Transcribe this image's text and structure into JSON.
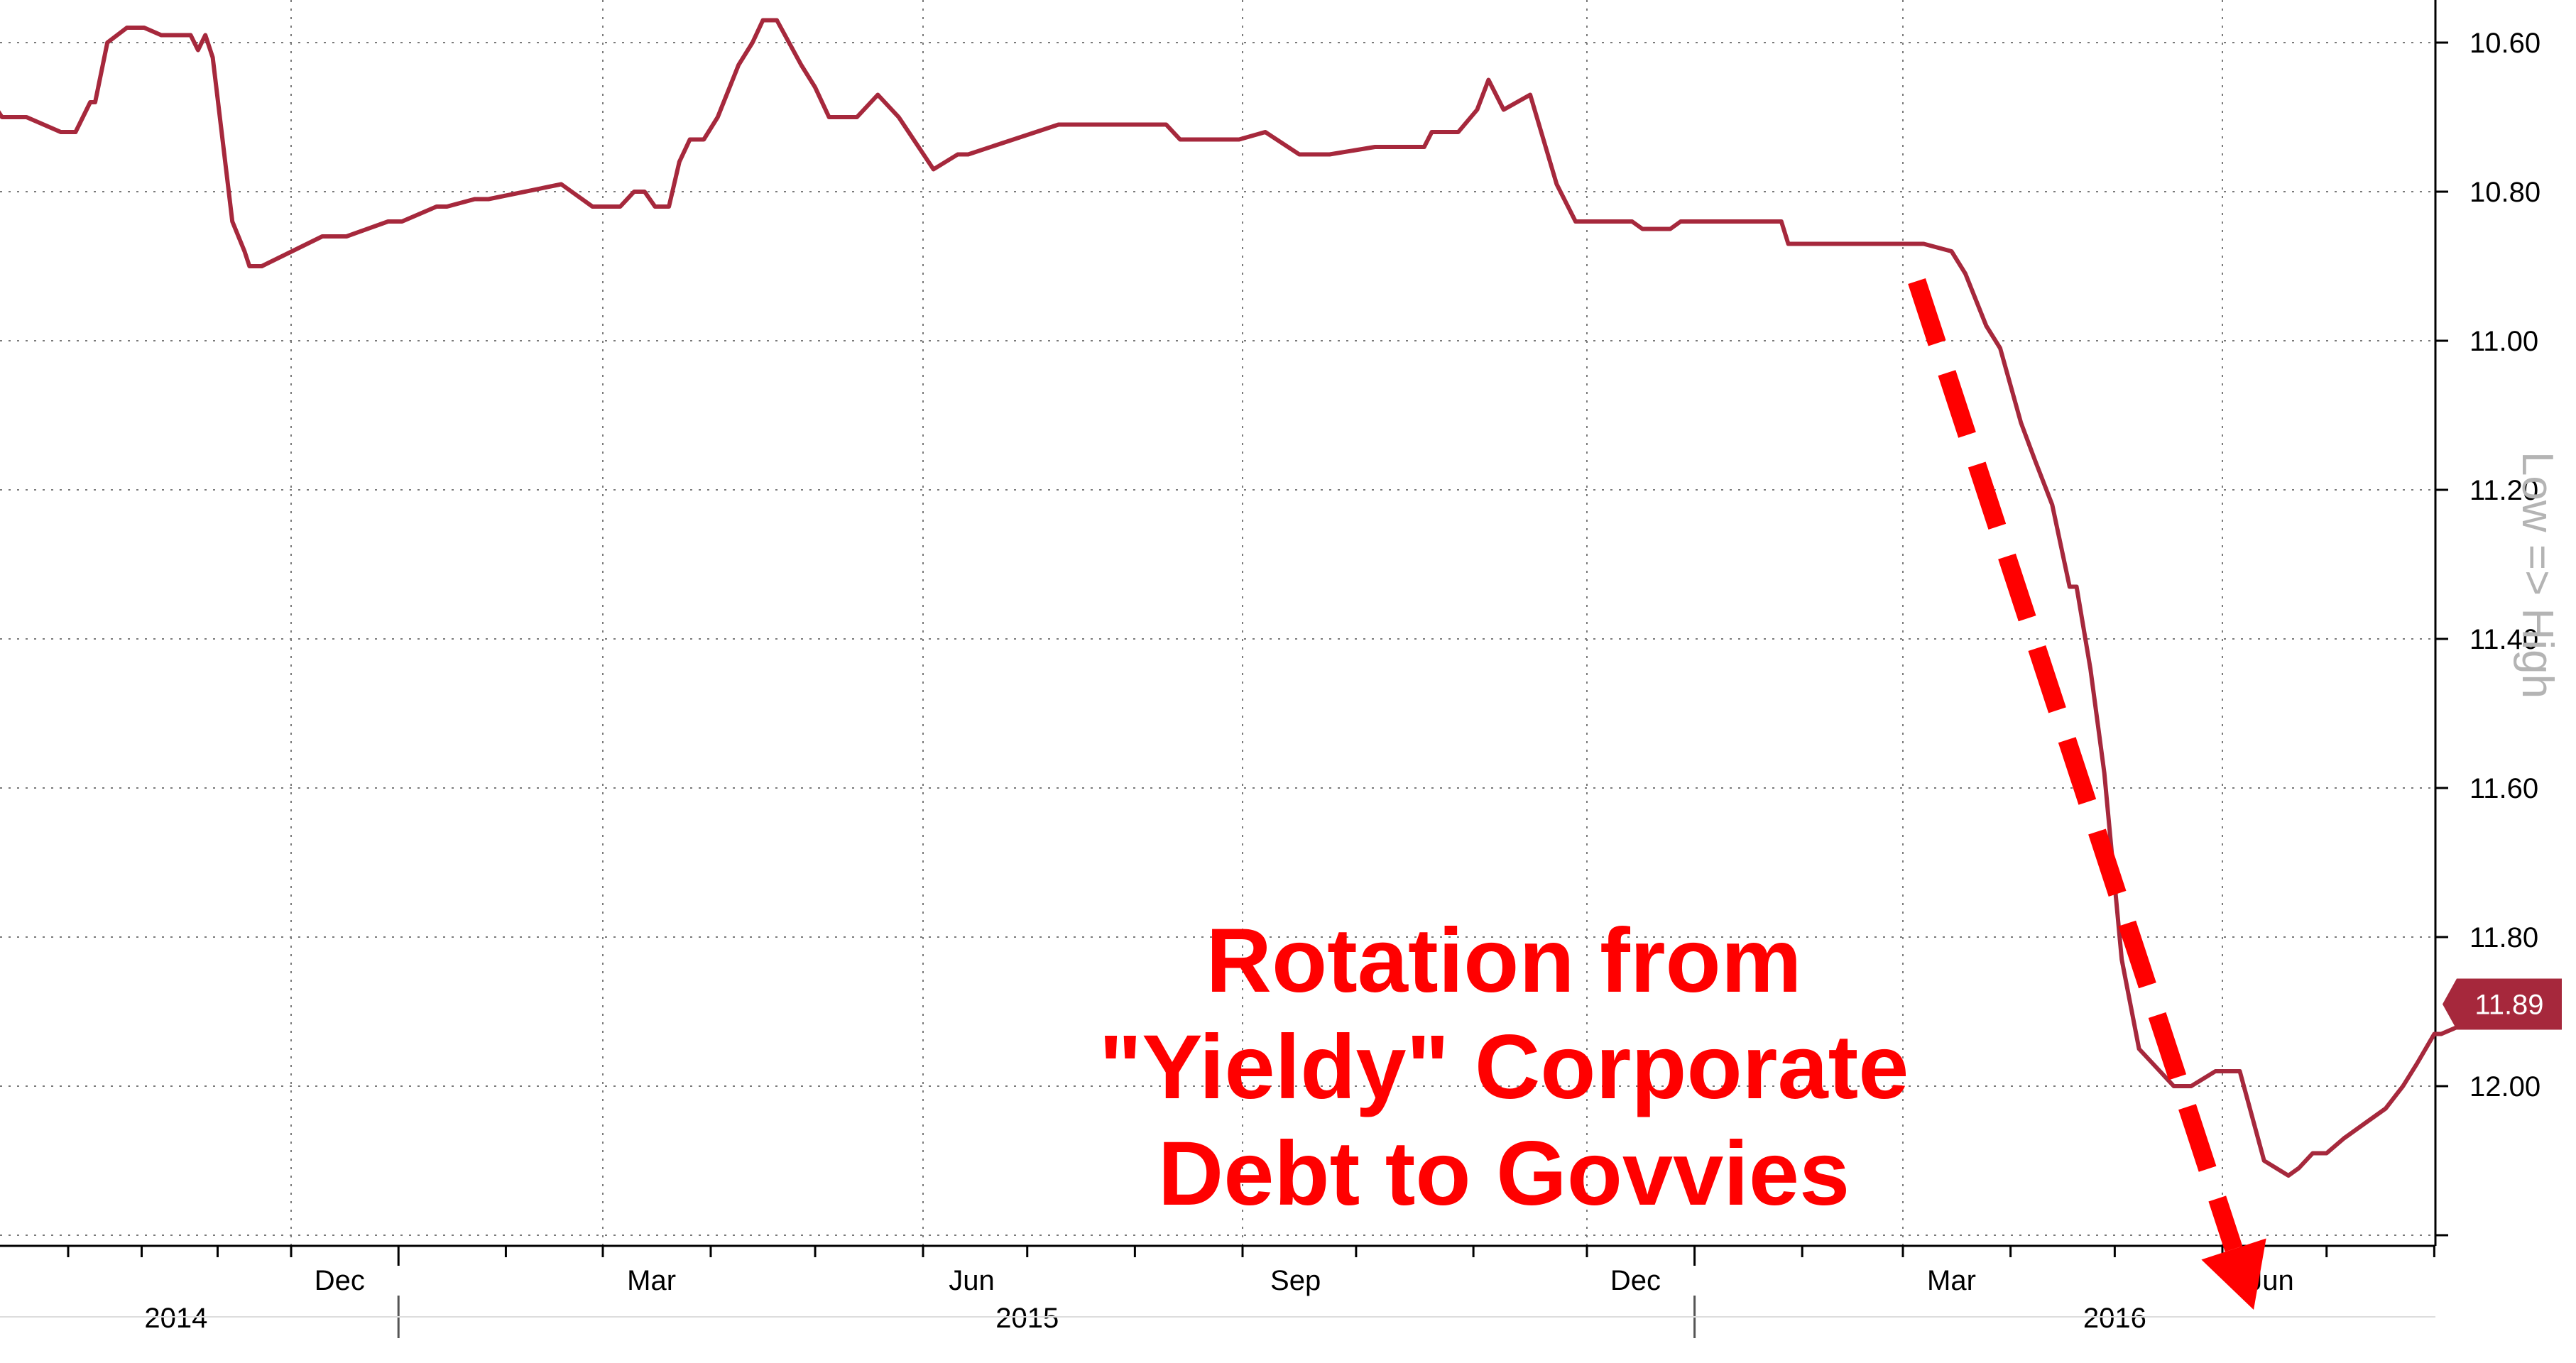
{
  "chart_data": {
    "type": "line",
    "y_inverted": true,
    "ylim": [
      10.55,
      12.27
    ],
    "y_ticks": [
      10.6,
      10.8,
      11.0,
      11.2,
      11.4,
      11.6,
      11.8,
      12.0,
      12.2
    ],
    "y_tick_labels": [
      "10.60",
      "10.80",
      "11.00",
      "11.20",
      "11.40",
      "11.60",
      "11.80",
      "12.00",
      ""
    ],
    "y_axis_note": "Low => High",
    "x_month_labels": [
      "Dec",
      "Mar",
      "Jun",
      "Sep",
      "Dec",
      "Mar",
      "Jun"
    ],
    "x_year_labels": [
      "2014",
      "2015",
      "2016"
    ],
    "last_value_label": "11.89",
    "series": [
      {
        "color": "#a6283c",
        "x": [
          "2014-08-01",
          "2014-08-05",
          "2014-08-15",
          "2014-08-29",
          "2014-09-04",
          "2014-09-10",
          "2014-09-12",
          "2014-09-17",
          "2014-09-25",
          "2014-10-02",
          "2014-10-09",
          "2014-10-21",
          "2014-10-24",
          "2014-10-27",
          "2014-10-30",
          "2014-11-07",
          "2014-11-12",
          "2014-11-14",
          "2014-11-17",
          "2014-11-19",
          "2014-12-10",
          "2014-12-17",
          "2014-12-29",
          "2015-01-02",
          "2015-01-12",
          "2015-01-15",
          "2015-01-23",
          "2015-01-27",
          "2015-02-17",
          "2015-02-20",
          "2015-02-26",
          "2015-03-06",
          "2015-03-10",
          "2015-03-13",
          "2015-03-16",
          "2015-03-20",
          "2015-03-23",
          "2015-03-26",
          "2015-03-30",
          "2015-04-03",
          "2015-04-09",
          "2015-04-13",
          "2015-04-16",
          "2015-04-20",
          "2015-04-27",
          "2015-05-01",
          "2015-05-05",
          "2015-05-08",
          "2015-05-13",
          "2015-05-19",
          "2015-05-25",
          "2015-06-04",
          "2015-06-11",
          "2015-06-14",
          "2015-07-10",
          "2015-07-14",
          "2015-08-10",
          "2015-08-14",
          "2015-08-17",
          "2015-08-31",
          "2015-09-07",
          "2015-09-16",
          "2015-09-24",
          "2015-10-06",
          "2015-10-15",
          "2015-10-19",
          "2015-10-21",
          "2015-10-26",
          "2015-10-28",
          "2015-11-02",
          "2015-11-05",
          "2015-11-09",
          "2015-11-16",
          "2015-11-23",
          "2015-11-28",
          "2015-12-14",
          "2015-12-17",
          "2015-12-25",
          "2015-12-28",
          "2016-01-26",
          "2016-01-28",
          "2016-02-17",
          "2016-02-23",
          "2016-03-07",
          "2016-03-15",
          "2016-03-19",
          "2016-03-25",
          "2016-03-29",
          "2016-04-04",
          "2016-04-08",
          "2016-04-13",
          "2016-04-18",
          "2016-04-20",
          "2016-04-24",
          "2016-04-28",
          "2016-05-03",
          "2016-05-08",
          "2016-05-14",
          "2016-05-18",
          "2016-05-23",
          "2016-05-30",
          "2016-06-06",
          "2016-06-13",
          "2016-06-20",
          "2016-06-23",
          "2016-06-27",
          "2016-07-01",
          "2016-07-06",
          "2016-07-12",
          "2016-07-18",
          "2016-07-23",
          "2016-07-27",
          "2016-08-01",
          "2016-08-03",
          "2016-08-08",
          "2016-08-11"
        ],
        "y": [
          10.68,
          10.7,
          10.7,
          10.72,
          10.72,
          10.68,
          10.68,
          10.6,
          10.58,
          10.58,
          10.59,
          10.59,
          10.61,
          10.59,
          10.62,
          10.84,
          10.88,
          10.9,
          10.9,
          10.9,
          10.86,
          10.86,
          10.84,
          10.84,
          10.82,
          10.82,
          10.81,
          10.81,
          10.79,
          10.8,
          10.82,
          10.82,
          10.8,
          10.8,
          10.82,
          10.82,
          10.76,
          10.73,
          10.73,
          10.7,
          10.63,
          10.6,
          10.57,
          10.57,
          10.63,
          10.66,
          10.7,
          10.7,
          10.7,
          10.67,
          10.7,
          10.77,
          10.75,
          10.75,
          10.71,
          10.71,
          10.71,
          10.73,
          10.73,
          10.73,
          10.72,
          10.75,
          10.75,
          10.74,
          10.74,
          10.74,
          10.72,
          10.72,
          10.72,
          10.69,
          10.65,
          10.69,
          10.67,
          10.79,
          10.84,
          10.84,
          10.85,
          10.85,
          10.84,
          10.84,
          10.87,
          10.87,
          10.87,
          10.87,
          10.88,
          10.91,
          10.98,
          11.01,
          11.11,
          11.16,
          11.22,
          11.33,
          11.33,
          11.44,
          11.58,
          11.83,
          11.95,
          11.98,
          12.0,
          12.0,
          11.98,
          11.98,
          12.1,
          12.12,
          12.11,
          12.09,
          12.09,
          12.07,
          12.05,
          12.03,
          12.0,
          11.97,
          11.93,
          11.93,
          11.92,
          11.89
        ]
      }
    ],
    "annotation_lines": [
      "Rotation from",
      "\"Yieldy\" Corporate",
      "Debt to Govvies"
    ],
    "arrow": {
      "from": [
        "2016-03-05",
        10.92
      ],
      "to": [
        "2016-06-10",
        12.3
      ]
    }
  },
  "colors": {
    "series": "#a6283c",
    "annotation": "#ff0000",
    "axis_note": "#b4b4b4",
    "grid": "#7a7a7a",
    "last_value_tag": "#a6283c"
  }
}
